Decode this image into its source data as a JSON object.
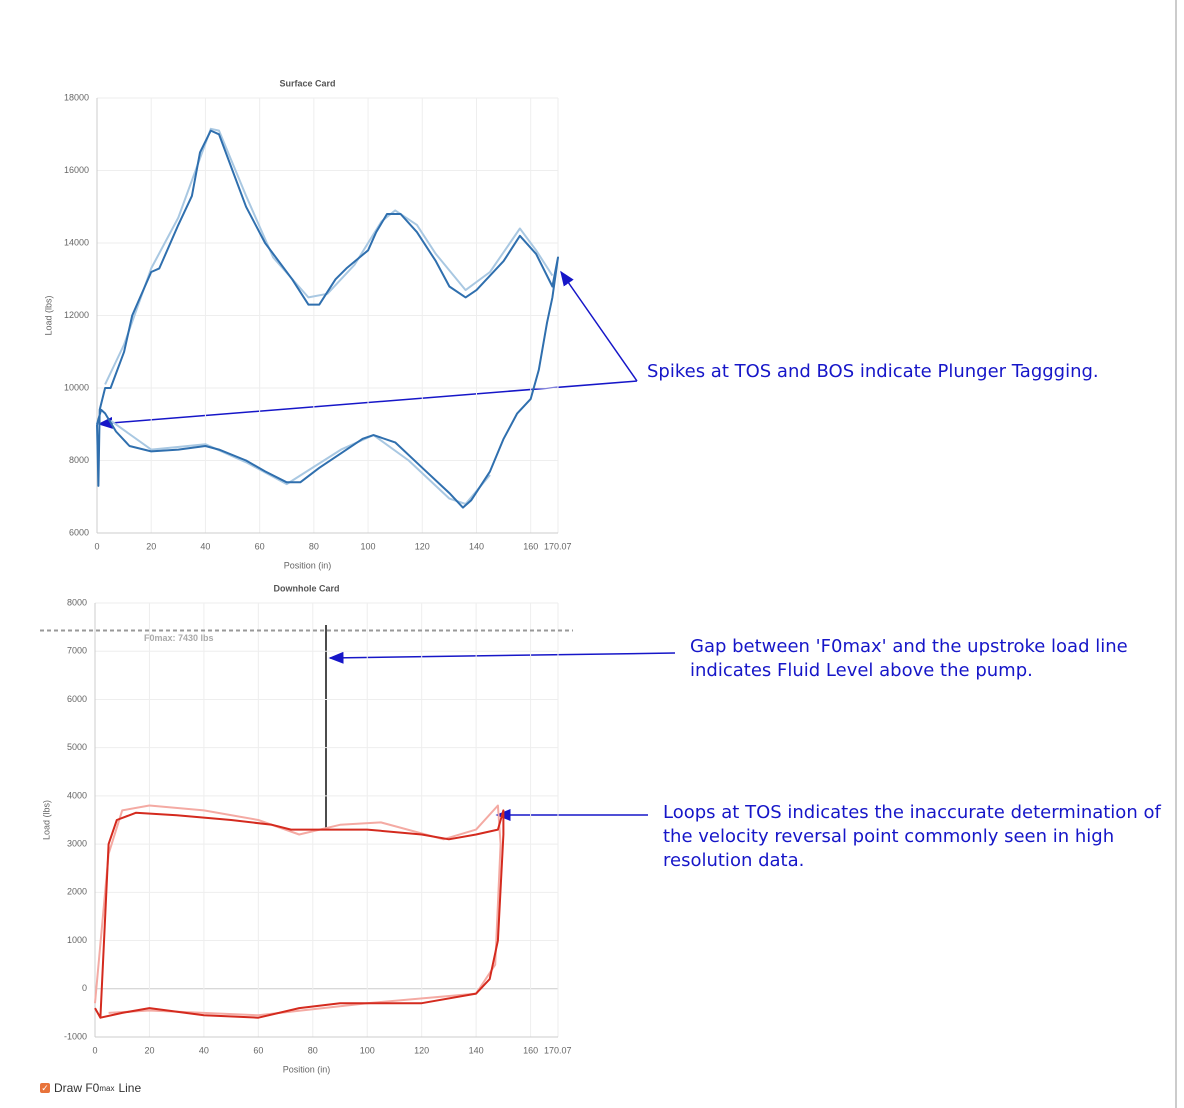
{
  "chart_data": [
    {
      "type": "line",
      "title": "Surface Card",
      "x_label": "Position (in)",
      "y_label": "Load (lbs)",
      "xlim": [
        0,
        170.07
      ],
      "xticks": [
        0,
        20,
        40,
        60,
        80,
        100,
        120,
        140,
        160,
        170.07
      ],
      "ylim": [
        6000,
        18000
      ],
      "yticks": [
        6000,
        8000,
        10000,
        12000,
        14000,
        16000,
        18000
      ],
      "grid": true,
      "series": [
        {
          "color": "#a9c8e2",
          "x": [
            3,
            10,
            20,
            30,
            42,
            45,
            55,
            65,
            78,
            85,
            95,
            105,
            110,
            118,
            125,
            136,
            145,
            156,
            162,
            168
          ],
          "values": [
            10100,
            11200,
            13300,
            14700,
            17150,
            17100,
            15300,
            13600,
            12500,
            12600,
            13400,
            14600,
            14900,
            14500,
            13700,
            12700,
            13200,
            14400,
            13800,
            13100
          ]
        },
        {
          "color": "#a9c8e2",
          "x": [
            5,
            20,
            40,
            55,
            70,
            90,
            102,
            115,
            130,
            136,
            145
          ],
          "values": [
            9100,
            8300,
            8450,
            7950,
            7350,
            8300,
            8700,
            8000,
            6950,
            6800,
            7600
          ]
        },
        {
          "color": "#2f6fae",
          "x": [
            0,
            0.5,
            1,
            3,
            5,
            10,
            13,
            20,
            23,
            30,
            35,
            38,
            42,
            45,
            50,
            55,
            62,
            72,
            78,
            82,
            88,
            92,
            100,
            103,
            107,
            112,
            118,
            125,
            130,
            136,
            140,
            150,
            156,
            162,
            168,
            170.07,
            168,
            166,
            163,
            160,
            155,
            150,
            145,
            138,
            135,
            130,
            120,
            110,
            102,
            98,
            90,
            82,
            75,
            70,
            62,
            55,
            45,
            40,
            30,
            20,
            12,
            7,
            3,
            1.5,
            0
          ],
          "values": [
            9000,
            7300,
            9400,
            10000,
            10000,
            11000,
            12000,
            13200,
            13300,
            14500,
            15300,
            16500,
            17100,
            17000,
            16000,
            15000,
            14000,
            13000,
            12300,
            12300,
            13000,
            13300,
            13800,
            14300,
            14800,
            14800,
            14300,
            13500,
            12800,
            12500,
            12700,
            13500,
            14200,
            13700,
            12800,
            13600,
            12500,
            11800,
            10500,
            9700,
            9300,
            8600,
            7700,
            6900,
            6700,
            7100,
            7800,
            8500,
            8700,
            8600,
            8200,
            7800,
            7400,
            7400,
            7700,
            8000,
            8300,
            8400,
            8300,
            8250,
            8400,
            8800,
            9300,
            9400,
            9000
          ]
        }
      ]
    },
    {
      "type": "line",
      "title": "Downhole Card",
      "x_label": "Position (in)",
      "y_label": "Load (lbs)",
      "xlim": [
        0,
        170.07
      ],
      "xticks": [
        0,
        20,
        40,
        60,
        80,
        100,
        120,
        140,
        160,
        170.07
      ],
      "ylim": [
        -1000,
        8000
      ],
      "yticks": [
        -1000,
        0,
        1000,
        2000,
        3000,
        4000,
        5000,
        6000,
        7000,
        8000
      ],
      "grid": true,
      "reference_line": {
        "value": 7430,
        "label": "F0max: 7430 lbs"
      },
      "series": [
        {
          "color": "#f4aaa3",
          "x": [
            0,
            5,
            10,
            20,
            40,
            60,
            75,
            90,
            105,
            128,
            140,
            148,
            149,
            147,
            140,
            100,
            60,
            20,
            5
          ],
          "values": [
            -300,
            2800,
            3700,
            3800,
            3700,
            3500,
            3200,
            3400,
            3450,
            3100,
            3300,
            3800,
            3000,
            500,
            -100,
            -300,
            -550,
            -450,
            -500
          ]
        },
        {
          "color": "#d42a1e",
          "x": [
            0,
            2,
            5,
            8,
            15,
            30,
            50,
            65,
            72,
            100,
            120,
            130,
            140,
            148,
            150,
            150,
            148,
            145,
            140,
            120,
            90,
            75,
            60,
            40,
            20,
            10,
            2
          ],
          "values": [
            -400,
            -600,
            3000,
            3500,
            3650,
            3600,
            3500,
            3400,
            3300,
            3300,
            3200,
            3100,
            3200,
            3300,
            3700,
            3200,
            1000,
            200,
            -100,
            -300,
            -300,
            -400,
            -600,
            -550,
            -400,
            -500,
            -600
          ]
        }
      ]
    }
  ],
  "annotations": [
    {
      "text": "Spikes at TOS and BOS indicate Plunger Taggging."
    },
    {
      "text": "Gap between 'F0max' and the upstroke load line indicates Fluid Level above the pump."
    },
    {
      "text": "Loops at TOS indicates the inaccurate determination of the velocity reversal point commonly seen in high resolution data."
    }
  ],
  "controls": {
    "f0max_checkbox": {
      "checked": true,
      "label": "Draw F0",
      "label_sub": "max",
      "label_end": "Line"
    }
  }
}
